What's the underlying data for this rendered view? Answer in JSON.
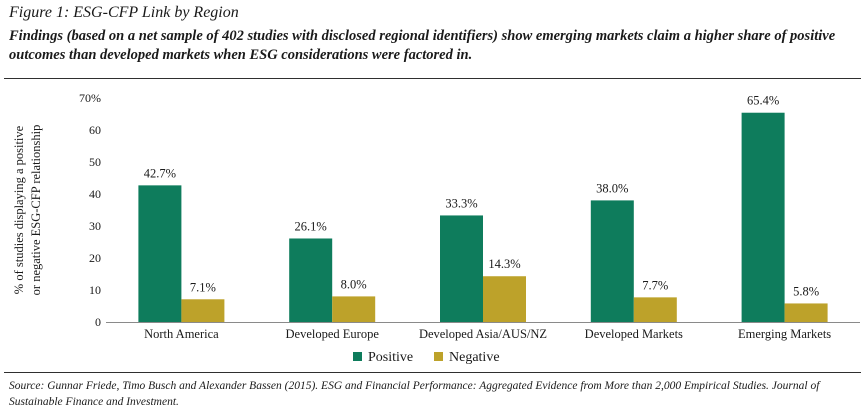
{
  "figure": {
    "title": "Figure 1: ESG-CFP Link by Region",
    "subtitle": "Findings (based on a net sample of 402 studies with disclosed regional identifiers) show emerging markets claim a higher share of positive outcomes than developed markets when ESG considerations were factored in.",
    "source": "Source: Gunnar Friede, Timo Busch and Alexander Bassen (2015). ESG and Financial Performance: Aggregated Evidence from More than 2,000 Empirical Studies. Journal of Sustainable Finance and Investment."
  },
  "chart_data": {
    "type": "bar",
    "title": "ESG-CFP Link by Region",
    "categories": [
      "North America",
      "Developed Europe",
      "Developed Asia/AUS/NZ",
      "Developed Markets",
      "Emerging Markets"
    ],
    "series": [
      {
        "name": "Positive",
        "color": "#0e7c5c",
        "values": [
          42.7,
          26.1,
          33.3,
          38.0,
          65.4
        ],
        "labels": [
          "42.7%",
          "26.1%",
          "33.3%",
          "38.0%",
          "65.4%"
        ]
      },
      {
        "name": "Negative",
        "color": "#bda22a",
        "values": [
          7.1,
          8.0,
          14.3,
          7.7,
          5.8
        ],
        "labels": [
          "7.1%",
          "8.0%",
          "14.3%",
          "7.7%",
          "5.8%"
        ]
      }
    ],
    "ylabel_lines": [
      "% of studies displaying a positive",
      "or negative ESG-CFP relationship"
    ],
    "xlabel": "",
    "ylim": [
      0,
      70
    ],
    "yticks": [
      0,
      10,
      20,
      30,
      40,
      50,
      60,
      70
    ],
    "ytick_labels": [
      "0",
      "10",
      "20",
      "30",
      "40",
      "50",
      "60",
      "70%"
    ],
    "legend_position": "bottom-center",
    "grid": false
  }
}
